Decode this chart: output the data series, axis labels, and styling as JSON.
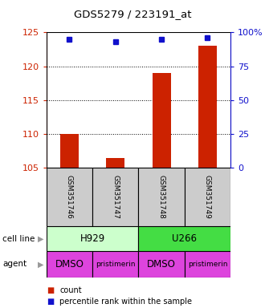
{
  "title": "GDS5279 / 223191_at",
  "samples": [
    "GSM351746",
    "GSM351747",
    "GSM351748",
    "GSM351749"
  ],
  "count_values": [
    110.0,
    106.5,
    119.0,
    123.0
  ],
  "percentile_values": [
    95,
    93,
    95,
    96
  ],
  "ylim_left": [
    105,
    125
  ],
  "ylim_right": [
    0,
    100
  ],
  "yticks_left": [
    105,
    110,
    115,
    120,
    125
  ],
  "yticks_right": [
    0,
    25,
    50,
    75,
    100
  ],
  "bar_color": "#cc2200",
  "dot_color": "#1111cc",
  "cell_line_groups": [
    {
      "label": "H929",
      "start": 0,
      "end": 2,
      "color": "#ccffcc"
    },
    {
      "label": "U266",
      "start": 2,
      "end": 4,
      "color": "#44dd44"
    }
  ],
  "agent_values": [
    "DMSO",
    "pristimerin",
    "DMSO",
    "pristimerin"
  ],
  "agent_color": "#dd44dd",
  "sample_box_color": "#cccccc",
  "background_color": "#ffffff",
  "left_axis_color": "#cc2200",
  "right_axis_color": "#1111cc",
  "grid_yticks": [
    110,
    115,
    120
  ],
  "legend_items": [
    {
      "color": "#cc2200",
      "label": "count"
    },
    {
      "color": "#1111cc",
      "label": "percentile rank within the sample"
    }
  ]
}
